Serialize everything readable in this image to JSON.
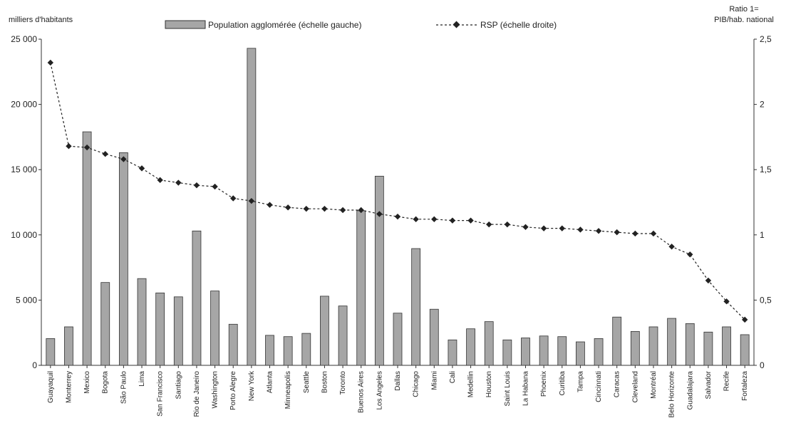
{
  "chart_data": {
    "type": "bar",
    "left_axis_title": "milliers d'habitants",
    "right_axis_title_line1": "Ratio 1=",
    "right_axis_title_line2": "PIB/hab. national",
    "legend_bar": "Population agglomérée (échelle gauche)",
    "legend_line": "RSP (échelle droite)",
    "categories": [
      "Guayaquil",
      "Monterrey",
      "Mexico",
      "Bogota",
      "São Paulo",
      "Lima",
      "San Francisco",
      "Santiago",
      "Rio de Janeiro",
      "Washington",
      "Porto Alegre",
      "New York",
      "Atlanta",
      "Minneapolis",
      "Seattle",
      "Boston",
      "Toronto",
      "Buenos Aires",
      "Los Angeles",
      "Dallas",
      "Chicago",
      "Miami",
      "Cali",
      "Medellin",
      "Houston",
      "Saint Louis",
      "La Habana",
      "Phoenix",
      "Curitiba",
      "Tampa",
      "Cincinnati",
      "Caracas",
      "Cleveland",
      "Montréal",
      "Belo Horizonte",
      "Guadalajara",
      "Salvador",
      "Recife",
      "Fortaleza"
    ],
    "series": [
      {
        "name": "Population agglomérée (échelle gauche)",
        "axis": "left",
        "type": "bar",
        "values": [
          2050,
          2950,
          17900,
          6350,
          16300,
          6650,
          5550,
          5250,
          10300,
          5700,
          3150,
          24300,
          2300,
          2200,
          2450,
          5300,
          4550,
          11850,
          14500,
          4000,
          8950,
          4300,
          1950,
          2800,
          3350,
          1950,
          2100,
          2250,
          2200,
          1800,
          2050,
          3700,
          2600,
          2950,
          3600,
          3200,
          2550,
          2950,
          2350
        ]
      },
      {
        "name": "RSP (échelle droite)",
        "axis": "right",
        "type": "line",
        "values": [
          2.32,
          1.68,
          1.67,
          1.62,
          1.58,
          1.51,
          1.42,
          1.4,
          1.38,
          1.37,
          1.28,
          1.26,
          1.23,
          1.21,
          1.2,
          1.2,
          1.19,
          1.19,
          1.16,
          1.14,
          1.12,
          1.12,
          1.11,
          1.11,
          1.08,
          1.08,
          1.06,
          1.05,
          1.05,
          1.04,
          1.03,
          1.02,
          1.01,
          1.01,
          0.91,
          0.85,
          0.65,
          0.49,
          0.35
        ]
      }
    ],
    "ylim_left": [
      0,
      25000
    ],
    "ylim_right": [
      0,
      2.5
    ],
    "left_ticks": [
      "0",
      "5 000",
      "10 000",
      "15 000",
      "20 000",
      "25 000"
    ],
    "right_ticks": [
      "0",
      "0,5",
      "1",
      "1,5",
      "2",
      "2,5"
    ],
    "grid": false,
    "legend_position": "top",
    "colors": {
      "bar": "#a6a6a6",
      "bar_edge": "#333333",
      "line": "#222222",
      "axis": "#333333"
    }
  }
}
